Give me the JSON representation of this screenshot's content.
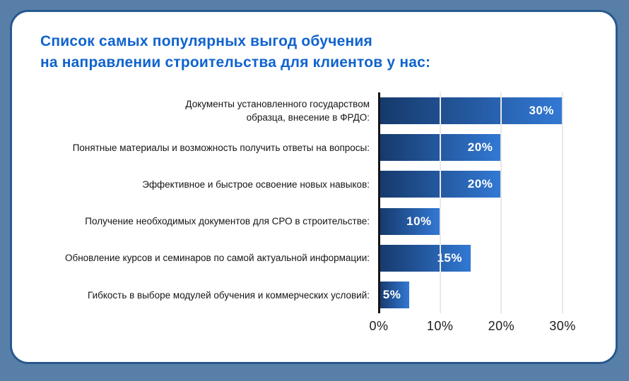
{
  "page": {
    "background_color": "#587fa8",
    "card_background": "#ffffff",
    "card_border_color": "#27598f"
  },
  "title": {
    "text": "Список самых популярных выгод обучения\nна направлении строительства для клиентов у нас:",
    "color": "#0f63cf"
  },
  "chart_data": {
    "type": "bar",
    "orientation": "horizontal",
    "title": "Список самых популярных выгод обучения на направлении строительства для клиентов у нас:",
    "categories": [
      "Документы установленного государством\nобразца, внесение в ФРДО:",
      "Понятные материалы и возможность получить ответы на вопросы:",
      "Эффективное и быстрое освоение новых навыков:",
      "Получение необходимых документов для СРО в строительстве:",
      "Обновление курсов и семинаров по самой актуальной информации:",
      "Гибкость в выборе модулей обучения и коммерческих условий:"
    ],
    "values": [
      30,
      20,
      20,
      10,
      15,
      5
    ],
    "value_labels": [
      "30%",
      "20%",
      "20%",
      "10%",
      "15%",
      "5%"
    ],
    "x_ticks": [
      {
        "value": 0,
        "label": "0%"
      },
      {
        "value": 10,
        "label": "10%"
      },
      {
        "value": 20,
        "label": "20%"
      },
      {
        "value": 30,
        "label": "30%"
      }
    ],
    "xlim": [
      0,
      36
    ],
    "grid": "vertical",
    "legend": "none",
    "bar_gradient_start": "#16396b",
    "bar_gradient_end": "#3279d4",
    "gridline_color": "#e8e8e8",
    "axis_color": "#141414",
    "value_label_color": "#ffffff"
  }
}
